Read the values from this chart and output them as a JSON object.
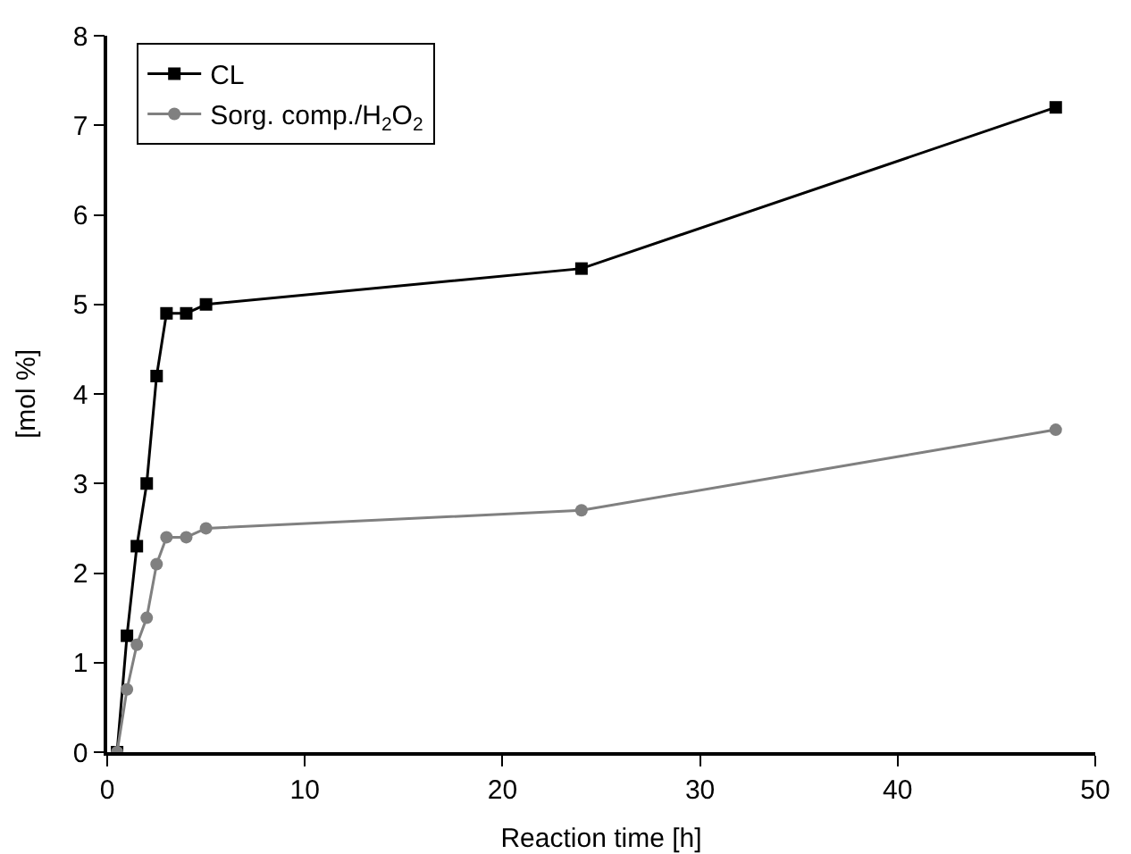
{
  "chart_data": {
    "type": "line",
    "xlabel": "Reaction time [h]",
    "ylabel": "[mol %]",
    "x": [
      0.5,
      1,
      1.5,
      2,
      2.5,
      3,
      4,
      5,
      24,
      48
    ],
    "series": [
      {
        "name": "CL",
        "color": "#000000",
        "marker": "square",
        "values": [
          0,
          1.3,
          2.3,
          3,
          4.2,
          4.9,
          4.9,
          5,
          5.4,
          7.2
        ]
      },
      {
        "name": "Sorg. comp./H$_{2}$O$_{2}$",
        "color": "#808080",
        "marker": "circle",
        "values": [
          0,
          0.7,
          1.2,
          1.5,
          2.1,
          2.4,
          2.4,
          2.5,
          2.7,
          3.6
        ]
      }
    ],
    "xlim": [
      0,
      50
    ],
    "xticks": [
      0,
      10,
      20,
      30,
      40,
      50
    ],
    "ylim": [
      0,
      8
    ],
    "yticks": [
      0,
      1,
      2,
      3,
      4,
      5,
      6,
      7,
      8
    ],
    "grid": false,
    "legend": "top left",
    "line_style": "solid"
  }
}
